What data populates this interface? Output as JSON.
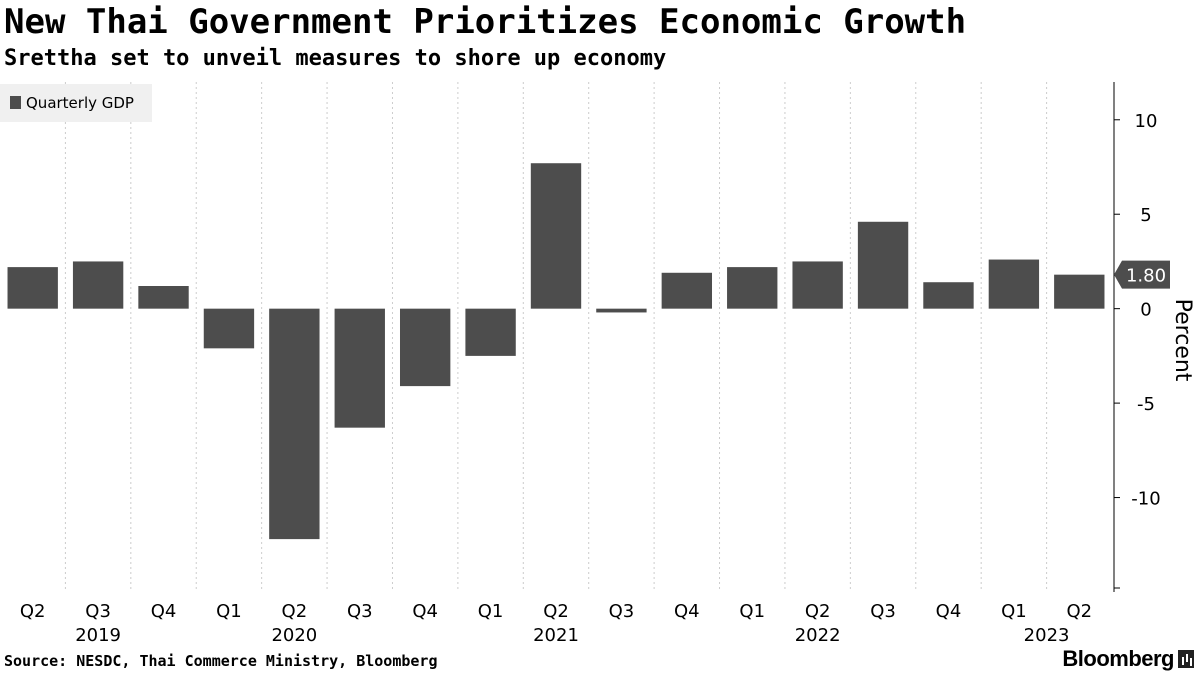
{
  "header": {
    "title": "New Thai Government Prioritizes Economic Growth",
    "subtitle": "Srettha set to unveil measures to shore up economy"
  },
  "footer": {
    "source": "Source: NESDC, Thai Commerce Ministry, Bloomberg",
    "brand": "Bloomberg"
  },
  "colors": {
    "bar": "#4d4d4d",
    "grid": "#cccccc",
    "axis": "#000000",
    "legend_bg": "#f0f0f0",
    "last_value_bg": "#4d4d4d",
    "last_value_text": "#ffffff"
  },
  "chart_data": {
    "type": "bar",
    "title": "New Thai Government Prioritizes Economic Growth",
    "subtitle": "Srettha set to unveil measures to shore up economy",
    "legend": [
      "Quarterly GDP"
    ],
    "legend_position": "top-left",
    "ylabel": "Percent",
    "ylim": [
      -15,
      12
    ],
    "yticks": [
      10,
      5,
      0,
      -5,
      -10
    ],
    "ytick_labels": [
      "10",
      "5",
      "0",
      "-5",
      "-10"
    ],
    "y_axis_side": "right",
    "grid": "vertical-dotted",
    "categories": [
      "Q2",
      "Q3",
      "Q4",
      "Q1",
      "Q2",
      "Q3",
      "Q4",
      "Q1",
      "Q2",
      "Q3",
      "Q4",
      "Q1",
      "Q2",
      "Q3",
      "Q4",
      "Q1",
      "Q2"
    ],
    "years": [
      {
        "label": "2019",
        "category_index": 1
      },
      {
        "label": "2020",
        "category_index": 4
      },
      {
        "label": "2021",
        "category_index": 8
      },
      {
        "label": "2022",
        "category_index": 12
      },
      {
        "label": "2023",
        "category_index": 15.5
      }
    ],
    "series": [
      {
        "name": "Quarterly GDP",
        "values": [
          2.2,
          2.5,
          1.2,
          -2.1,
          -12.2,
          -6.3,
          -4.1,
          -2.5,
          7.7,
          -0.2,
          1.9,
          2.2,
          2.5,
          4.6,
          1.4,
          2.6,
          1.8
        ]
      }
    ],
    "last_value_label": "1.80"
  }
}
